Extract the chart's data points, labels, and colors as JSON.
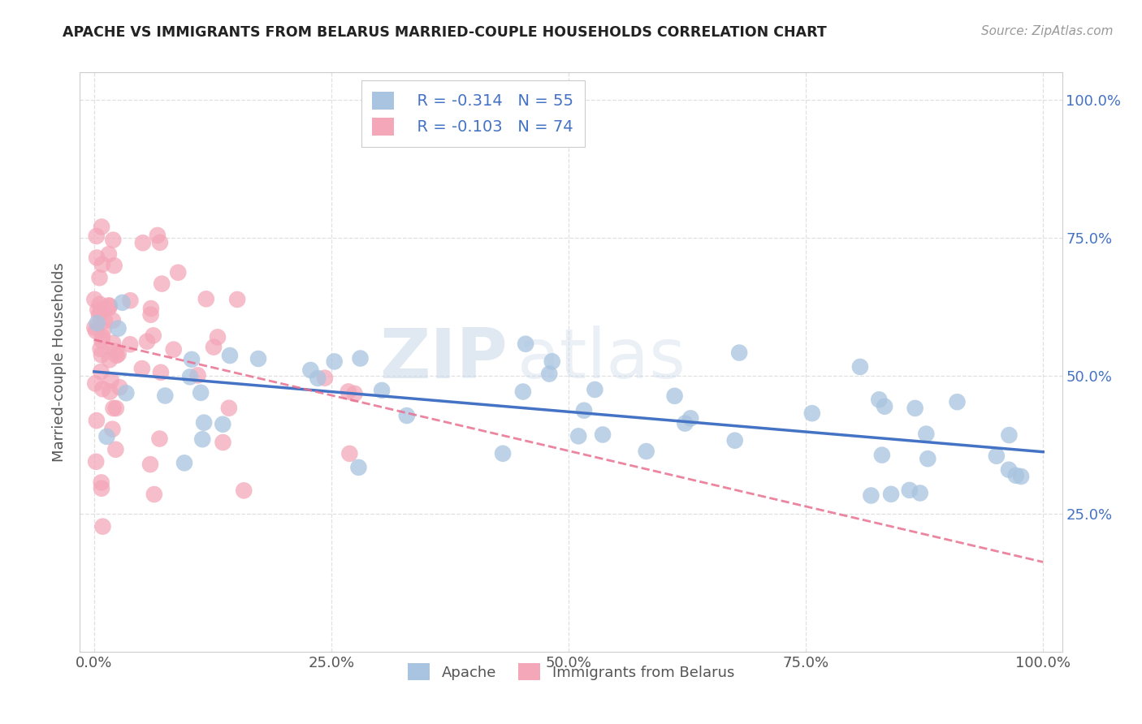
{
  "title": "APACHE VS IMMIGRANTS FROM BELARUS MARRIED-COUPLE HOUSEHOLDS CORRELATION CHART",
  "source": "Source: ZipAtlas.com",
  "ylabel": "Married-couple Households",
  "xlim": [
    0.0,
    1.0
  ],
  "ylim": [
    0.0,
    1.05
  ],
  "xtick_labels": [
    "0.0%",
    "25.0%",
    "50.0%",
    "75.0%",
    "100.0%"
  ],
  "xtick_positions": [
    0.0,
    0.25,
    0.5,
    0.75,
    1.0
  ],
  "right_ytick_labels": [
    "25.0%",
    "50.0%",
    "75.0%",
    "100.0%"
  ],
  "right_ytick_positions": [
    0.25,
    0.5,
    0.75,
    1.0
  ],
  "apache_color": "#a8c4e0",
  "apache_line_color": "#4472c4",
  "belarus_color": "#f4a7b9",
  "belarus_line_color": "#e87090",
  "legend_R_apache": "R = -0.314",
  "legend_N_apache": "N = 55",
  "legend_R_belarus": "R = -0.103",
  "legend_N_belarus": "N = 74",
  "watermark_zip": "ZIP",
  "watermark_atlas": "atlas",
  "background_color": "#ffffff",
  "grid_color": "#e0e0e0",
  "apache_seed": 10,
  "belarus_seed": 20
}
